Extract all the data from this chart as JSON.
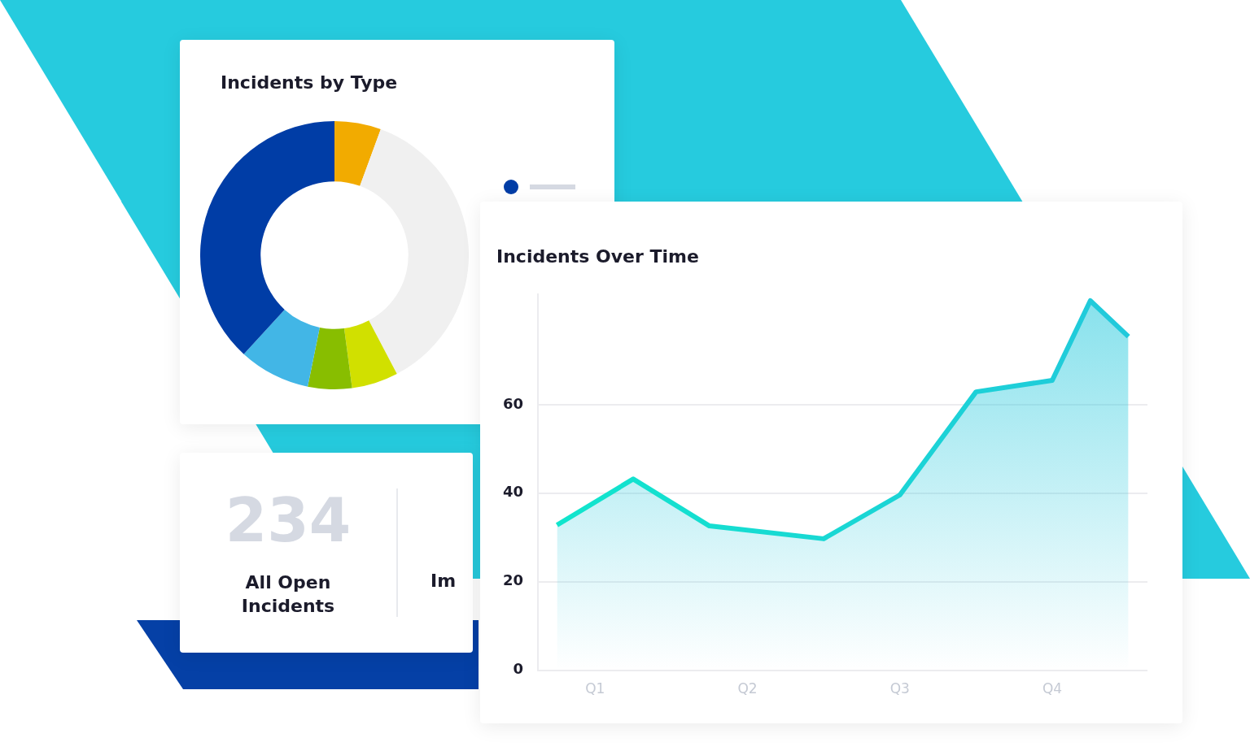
{
  "chart_data": [
    {
      "type": "donut",
      "title": "Incidents by Type",
      "categories": [
        null,
        null,
        null,
        null,
        null,
        null
      ],
      "values": [
        5.6,
        36.7,
        5.6,
        5.3,
        8.6,
        38.2
      ],
      "colors": [
        "#f2ab00",
        "#f0f0f0",
        "#d1e000",
        "#88be00",
        "#42b6e6",
        "#003da6"
      ]
    },
    {
      "type": "other",
      "annotations": [
        "234",
        "All Open Incidents",
        "Im"
      ]
    },
    {
      "type": "area",
      "title": "Incidents Over Time",
      "categories": [
        null,
        "Q1",
        null,
        null,
        null,
        "Q2",
        null,
        null,
        null,
        "Q3",
        null,
        null,
        null,
        "Q4",
        null,
        null
      ],
      "series": [
        {
          "color": "#22c8dc",
          "values": [
            32.8,
            null,
            43.2,
            null,
            32.6,
            null,
            null,
            29.7,
            null,
            39.6,
            null,
            62.9,
            null,
            65.5,
            83.5,
            75.4
          ]
        }
      ],
      "ylim": [
        0,
        85
      ],
      "yticks": [
        0,
        20,
        40,
        60
      ],
      "grid": "y",
      "legend": false,
      "marker": "none"
    }
  ]
}
